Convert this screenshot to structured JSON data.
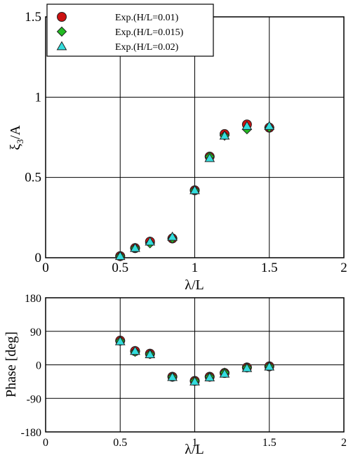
{
  "chart_data": [
    {
      "type": "scatter",
      "title": "",
      "xlabel": "λ/L",
      "ylabel_main": "ξ",
      "ylabel_sub": "3",
      "ylabel_tail": "/A",
      "xlim": [
        0,
        2
      ],
      "ylim": [
        0,
        1.5
      ],
      "xticks": [
        "0",
        "0.5",
        "1",
        "1.5",
        "2"
      ],
      "yticks": [
        "0",
        "0.5",
        "1",
        "1.5"
      ],
      "grid": true,
      "legend_position": "top-left",
      "series": [
        {
          "name": "Exp.(H/L=0.01)",
          "marker": "circle",
          "color": "#cc1111",
          "x": [
            0.5,
            0.6,
            0.7,
            0.85,
            1.0,
            1.1,
            1.2,
            1.35,
            1.5
          ],
          "y": [
            0.01,
            0.06,
            0.1,
            0.12,
            0.42,
            0.63,
            0.77,
            0.83,
            0.81
          ]
        },
        {
          "name": "Exp.(H/L=0.015)",
          "marker": "diamond",
          "color": "#22bb22",
          "x": [
            0.5,
            0.6,
            0.7,
            0.85,
            1.0,
            1.1,
            1.2,
            1.35,
            1.5
          ],
          "y": [
            0.01,
            0.06,
            0.09,
            0.12,
            0.42,
            0.63,
            0.76,
            0.8,
            0.81
          ]
        },
        {
          "name": "Exp.(H/L=0.02)",
          "marker": "triangle",
          "color": "#33dddd",
          "x": [
            0.5,
            0.6,
            0.7,
            0.85,
            1.0,
            1.1,
            1.2,
            1.35,
            1.5
          ],
          "y": [
            0.01,
            0.06,
            0.1,
            0.13,
            0.42,
            0.62,
            0.76,
            0.82,
            0.82
          ]
        }
      ]
    },
    {
      "type": "scatter",
      "title": "",
      "xlabel": "λ/L",
      "ylabel": "Phase [deg]",
      "xlim": [
        0,
        2
      ],
      "ylim": [
        -180,
        180
      ],
      "xticks": [
        "0",
        "0.5",
        "1",
        "1.5",
        "2"
      ],
      "yticks": [
        "-180",
        "-90",
        "0",
        "90",
        "180"
      ],
      "grid": true,
      "series": [
        {
          "name": "Exp.(H/L=0.01)",
          "marker": "circle",
          "color": "#cc1111",
          "x": [
            0.5,
            0.6,
            0.7,
            0.85,
            1.0,
            1.1,
            1.2,
            1.35,
            1.5
          ],
          "y": [
            65,
            37,
            30,
            -32,
            -43,
            -32,
            -22,
            -7,
            -4
          ]
        },
        {
          "name": "Exp.(H/L=0.015)",
          "marker": "diamond",
          "color": "#22bb22",
          "x": [
            0.5,
            0.6,
            0.7,
            0.85,
            1.0,
            1.1,
            1.2,
            1.35,
            1.5
          ],
          "y": [
            64,
            35,
            29,
            -32,
            -43,
            -32,
            -21,
            -7,
            -4
          ]
        },
        {
          "name": "Exp.(H/L=0.02)",
          "marker": "triangle",
          "color": "#33dddd",
          "x": [
            0.5,
            0.6,
            0.7,
            0.85,
            1.0,
            1.1,
            1.2,
            1.35,
            1.5
          ],
          "y": [
            63,
            37,
            28,
            -33,
            -45,
            -34,
            -24,
            -9,
            -5
          ]
        }
      ]
    }
  ]
}
